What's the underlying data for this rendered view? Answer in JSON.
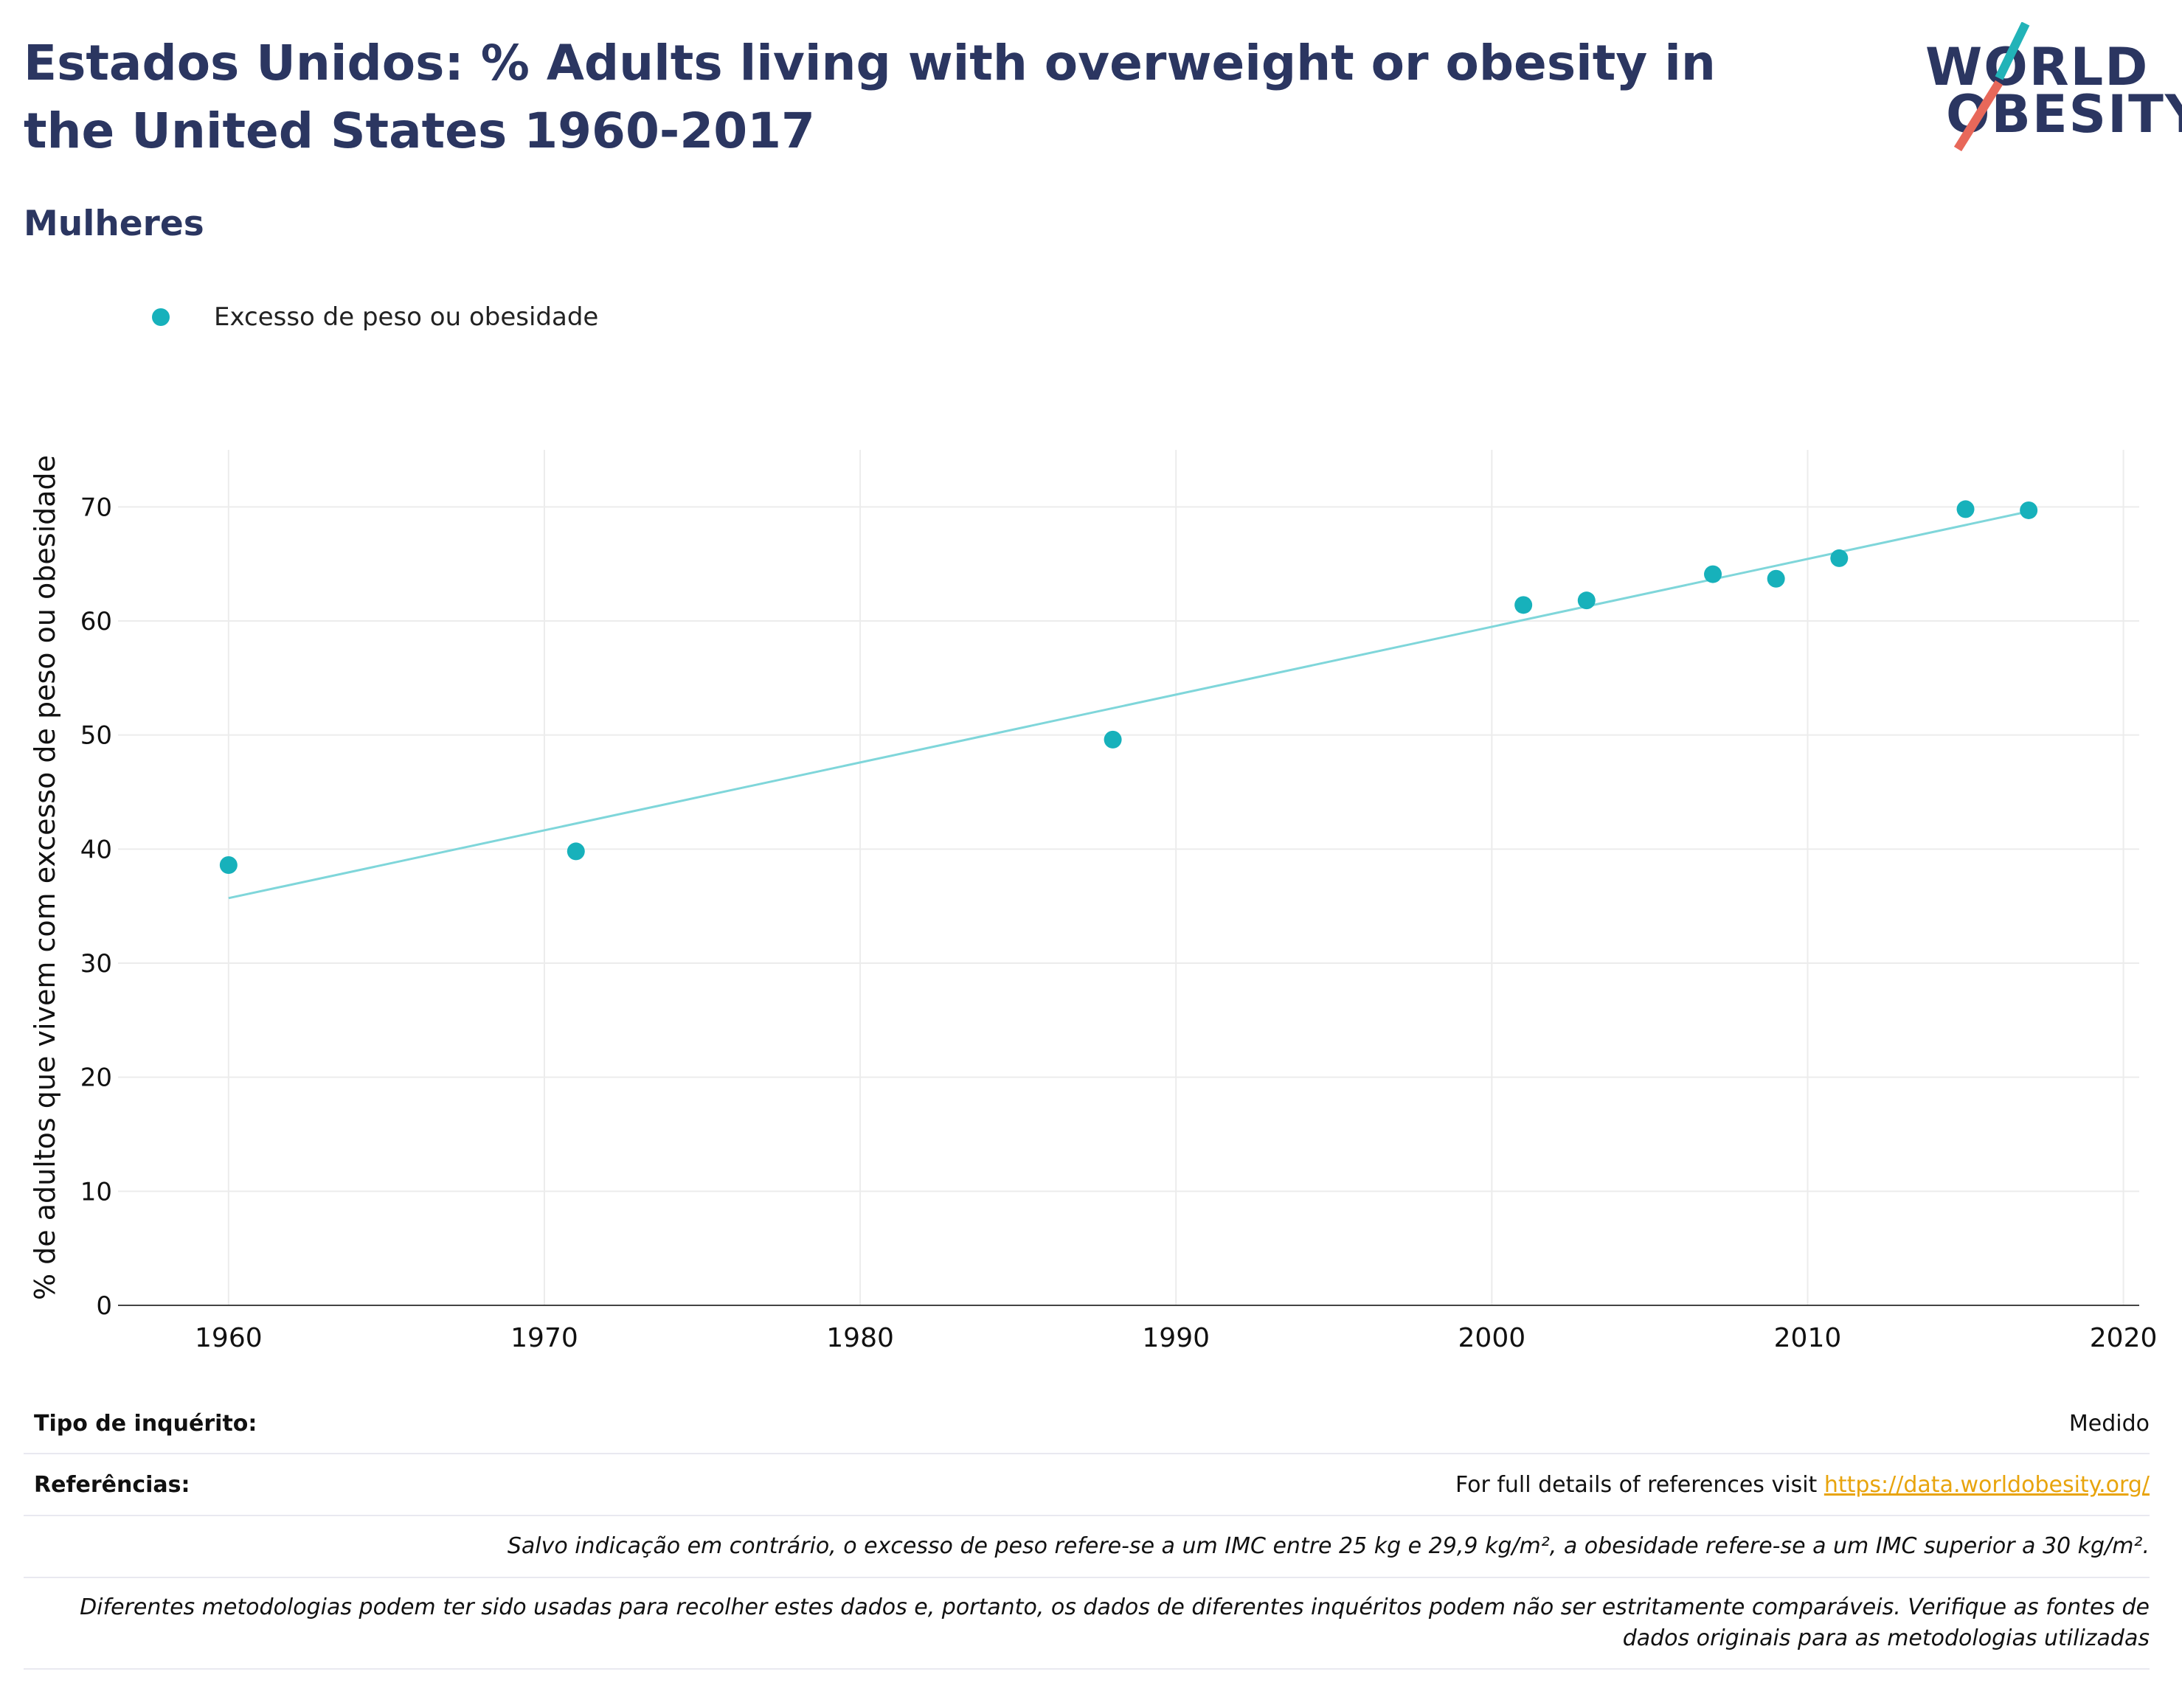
{
  "header": {
    "title": "Estados Unidos: % Adults living with overweight or obesity in the United States 1960-2017",
    "subtitle": "Mulheres"
  },
  "logo": {
    "line1": "WORLD",
    "line2": "OBESITY",
    "accent_colors": [
      "#22b3b8",
      "#e8685a"
    ]
  },
  "legend": {
    "label": "Excesso de peso ou obesidade",
    "color": "#17b1bb"
  },
  "chart_data": {
    "type": "scatter",
    "ylabel": "% de adultos que vivem com excesso de peso ou obesidade",
    "xlabel": "",
    "xlim": [
      1956.5,
      2020.5
    ],
    "ylim": [
      0,
      75
    ],
    "x_ticks": [
      1960,
      1970,
      1980,
      1990,
      2000,
      2010,
      2020
    ],
    "y_ticks": [
      0,
      10,
      20,
      30,
      40,
      50,
      60,
      70
    ],
    "grid": true,
    "legend_position": "top-left",
    "series": [
      {
        "name": "Excesso de peso ou obesidade",
        "color": "#17b1bb",
        "points": [
          {
            "x": 1960,
            "y": 38.6
          },
          {
            "x": 1971,
            "y": 39.8
          },
          {
            "x": 1988,
            "y": 49.6
          },
          {
            "x": 2001,
            "y": 61.4
          },
          {
            "x": 2003,
            "y": 61.8
          },
          {
            "x": 2007,
            "y": 64.1
          },
          {
            "x": 2009,
            "y": 63.7
          },
          {
            "x": 2011,
            "y": 65.5
          },
          {
            "x": 2015,
            "y": 69.8
          },
          {
            "x": 2017,
            "y": 69.7
          }
        ]
      }
    ],
    "trendline": {
      "color": "#7fd6da",
      "points": [
        {
          "x": 1960,
          "y": 35.7
        },
        {
          "x": 2017,
          "y": 69.6
        }
      ]
    }
  },
  "footer": {
    "survey_type_label": "Tipo de inquérito:",
    "survey_type_value": "Medido",
    "references_label": "Referências:",
    "references_text": "For full details of references visit ",
    "references_link": "https://data.worldobesity.org/",
    "note_bmi": "Salvo indicação em contrário, o excesso de peso refere-se a um IMC entre 25 kg e 29,9 kg/m², a obesidade refere-se a um IMC superior a 30 kg/m².",
    "note_methods": "Diferentes metodologias podem ter sido usadas para recolher estes dados e, portanto, os dados de diferentes inquéritos podem não ser estritamente comparáveis. Verifique as fontes de dados originais para as metodologias utilizadas"
  }
}
